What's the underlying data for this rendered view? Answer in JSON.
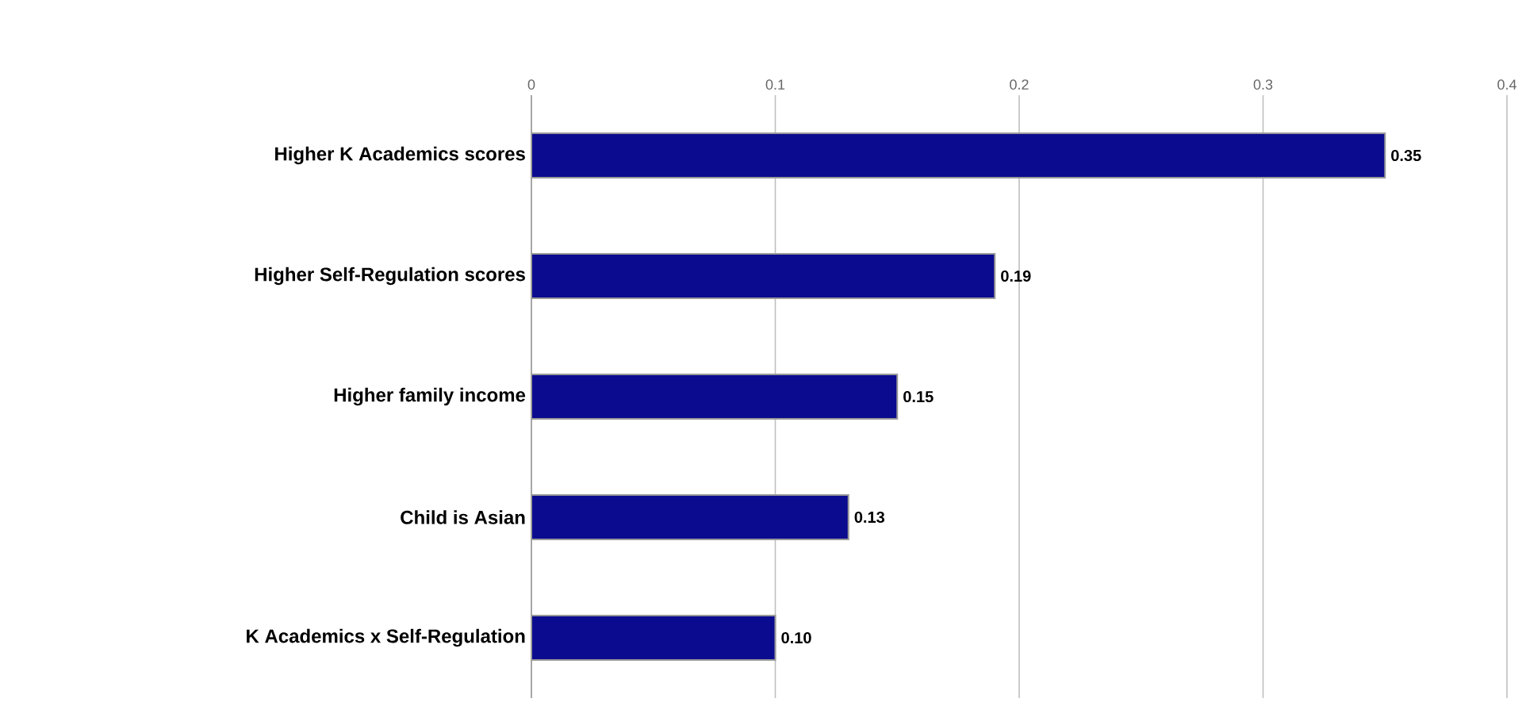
{
  "chart_data": {
    "type": "bar",
    "orientation": "horizontal",
    "categories": [
      "Higher K Academics scores",
      "Higher Self-Regulation scores",
      "Higher family income",
      "Child is Asian",
      "K Academics x Self-Regulation"
    ],
    "values": [
      0.35,
      0.19,
      0.15,
      0.13,
      0.1
    ],
    "value_labels": [
      "0.35",
      "0.19",
      "0.15",
      "0.13",
      "0.10"
    ],
    "color": "#0b0b8f",
    "xlim": [
      0,
      0.4
    ],
    "xticks": [
      0,
      0.1,
      0.2,
      0.3,
      0.4
    ],
    "grid": "x"
  }
}
